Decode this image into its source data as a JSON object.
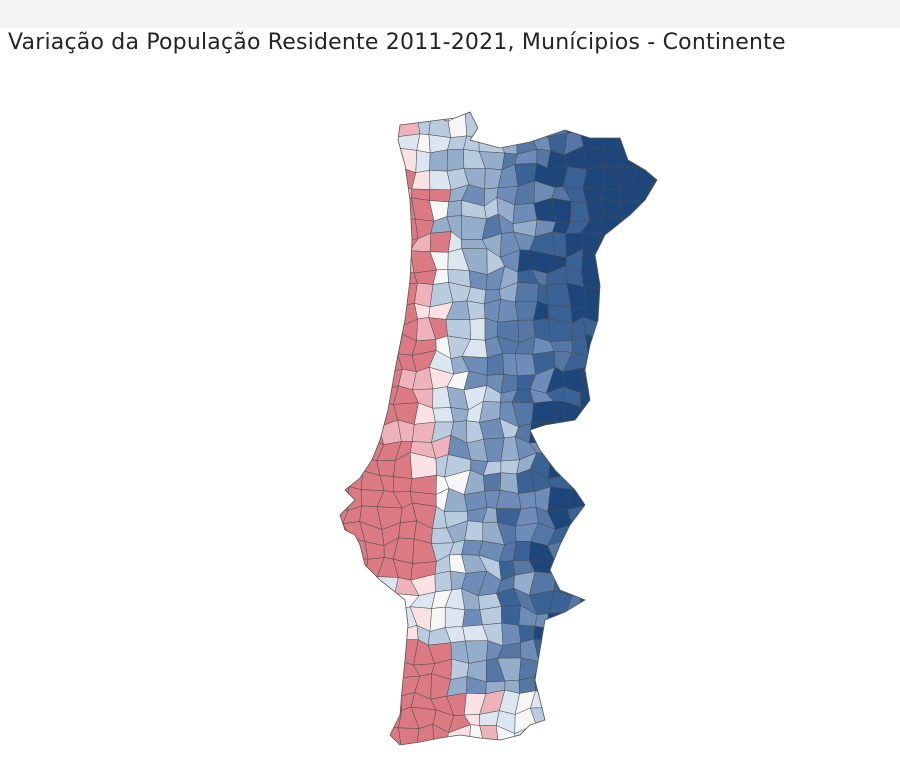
{
  "header": {
    "title": "Variação da População Residente 2011-2021, Munícipios - Continente"
  }
}
